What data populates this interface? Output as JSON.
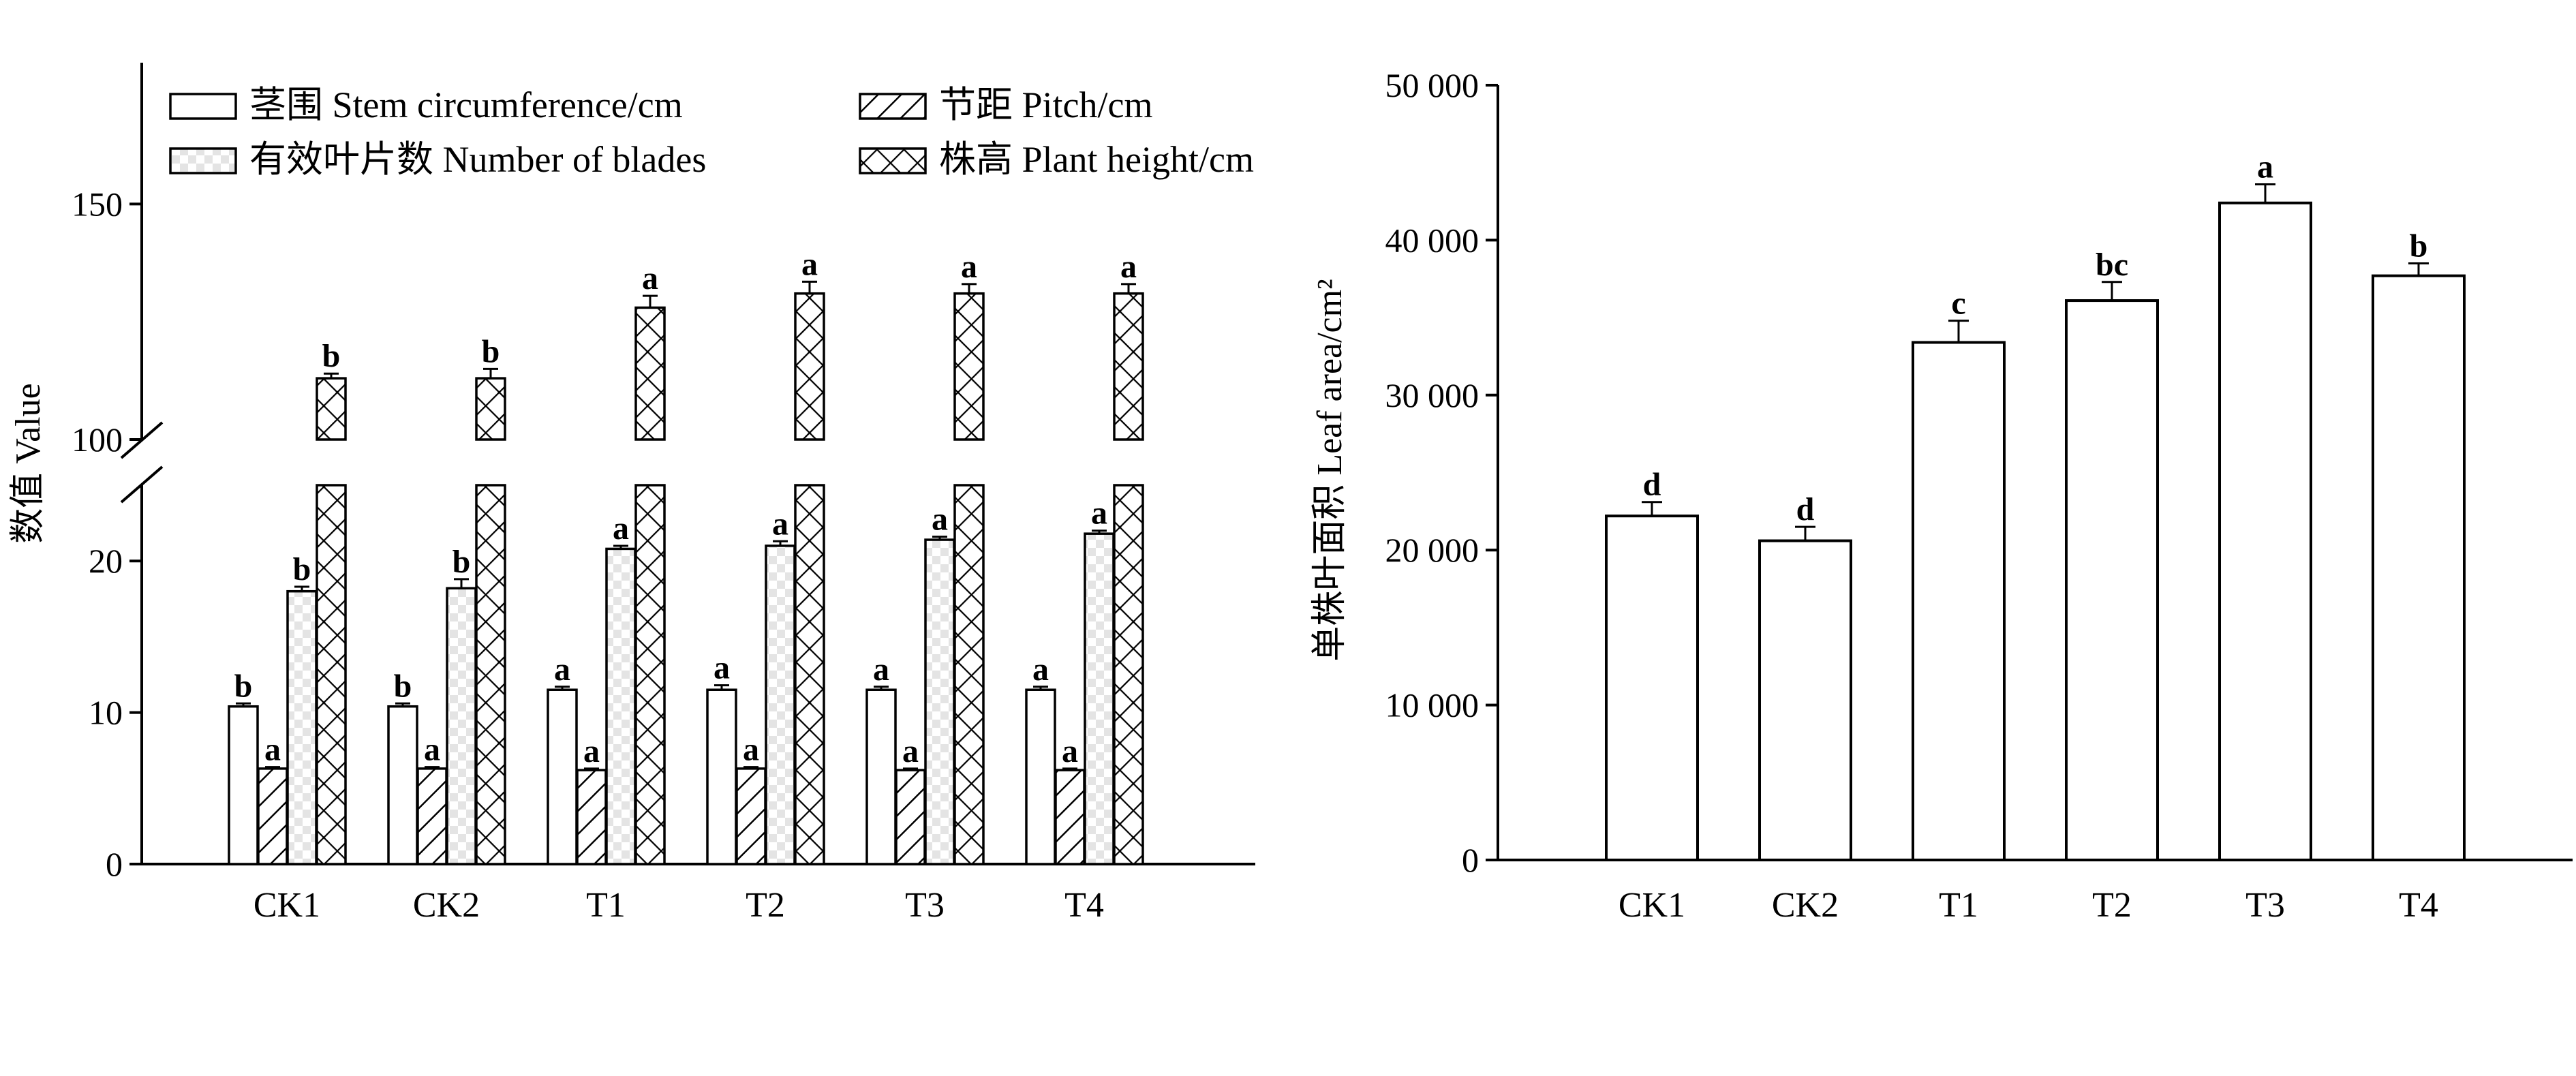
{
  "chart_data": [
    {
      "type": "bar",
      "categories": [
        "CK1",
        "CK2",
        "T1",
        "T2",
        "T3",
        "T4"
      ],
      "ylabel": "数值 Value",
      "y_ticks": [
        "0",
        "10",
        "20",
        "100",
        "150"
      ],
      "axis_break": {
        "lower_range": [
          0,
          25
        ],
        "upper_range": [
          100,
          180
        ]
      },
      "series": [
        {
          "name": "茎围 Stem circumference/cm",
          "fill": "white",
          "values": [
            10.4,
            10.4,
            11.5,
            11.5,
            11.5,
            11.5
          ],
          "errors": [
            0.2,
            0.2,
            0.2,
            0.3,
            0.2,
            0.2
          ],
          "sig": [
            "b",
            "b",
            "a",
            "a",
            "a",
            "a"
          ]
        },
        {
          "name": "节距 Pitch/cm",
          "fill": "diagonal-hatch",
          "values": [
            6.3,
            6.3,
            6.2,
            6.3,
            6.2,
            6.2
          ],
          "errors": [
            0.1,
            0.1,
            0.1,
            0.1,
            0.1,
            0.1
          ],
          "sig": [
            "a",
            "a",
            "a",
            "a",
            "a",
            "a"
          ]
        },
        {
          "name": "有效叶片数 Number of blades",
          "fill": "light-check",
          "values": [
            18.0,
            18.2,
            20.8,
            21.0,
            21.4,
            21.8
          ],
          "errors": [
            0.3,
            0.6,
            0.2,
            0.3,
            0.2,
            0.2
          ],
          "sig": [
            "b",
            "b",
            "a",
            "a",
            "a",
            "a"
          ]
        },
        {
          "name": "株高 Plant height/cm",
          "fill": "cross-hatch",
          "values": [
            113,
            113,
            128,
            131,
            131,
            131
          ],
          "errors": [
            1.0,
            2.0,
            2.5,
            2.5,
            2.0,
            2.0
          ],
          "sig": [
            "b",
            "b",
            "a",
            "a",
            "a",
            "a"
          ]
        }
      ],
      "legend": "top"
    },
    {
      "type": "bar",
      "categories": [
        "CK1",
        "CK2",
        "T1",
        "T2",
        "T3",
        "T4"
      ],
      "ylabel": "单株叶面积 Leaf area/cm²",
      "ylim": [
        0,
        50000
      ],
      "y_ticks": [
        "0",
        "10 000",
        "20 000",
        "30 000",
        "40 000",
        "50 000"
      ],
      "series": [
        {
          "name": "",
          "fill": "white",
          "values": [
            22200,
            20600,
            33400,
            36100,
            42400,
            37700
          ],
          "errors": [
            900,
            900,
            1400,
            1200,
            1200,
            800
          ],
          "sig": [
            "d",
            "d",
            "c",
            "bc",
            "a",
            "b"
          ]
        }
      ]
    }
  ]
}
